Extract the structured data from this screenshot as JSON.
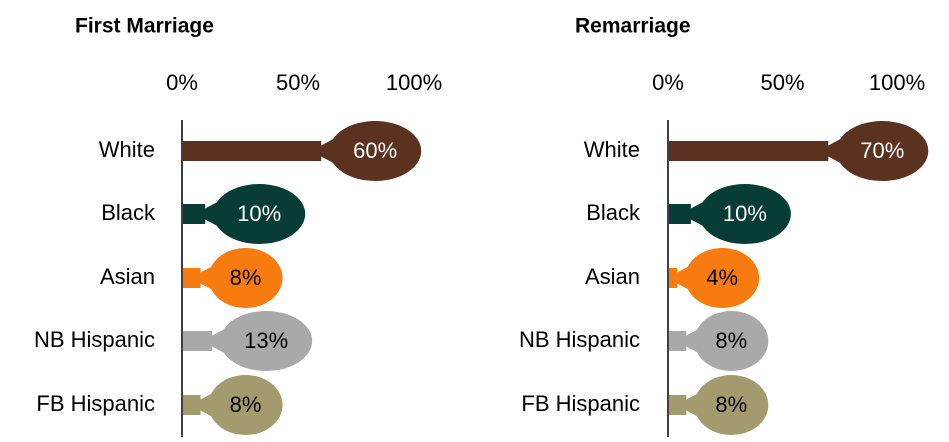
{
  "chart_data": [
    {
      "type": "bar",
      "orientation": "horizontal",
      "title": "First Marriage",
      "categories": [
        "White",
        "Black",
        "Asian",
        "NB Hispanic",
        "FB Hispanic"
      ],
      "values": [
        60,
        10,
        8,
        13,
        8
      ],
      "value_labels": [
        "60%",
        "10%",
        "8%",
        "13%",
        "8%"
      ],
      "colors": [
        "#5b3120",
        "#073d35",
        "#f77b0e",
        "#a9a9a9",
        "#a39a6e"
      ],
      "xlim": [
        0,
        100
      ],
      "xticks": [
        {
          "value": 0,
          "label": "0%"
        },
        {
          "value": 50,
          "label": "50%"
        },
        {
          "value": 100,
          "label": "100%"
        }
      ]
    },
    {
      "type": "bar",
      "orientation": "horizontal",
      "title": "Remarriage",
      "categories": [
        "White",
        "Black",
        "Asian",
        "NB Hispanic",
        "FB Hispanic"
      ],
      "values": [
        70,
        10,
        4,
        8,
        8
      ],
      "value_labels": [
        "70%",
        "10%",
        "4%",
        "8%",
        "8%"
      ],
      "colors": [
        "#5b3120",
        "#073d35",
        "#f77b0e",
        "#a9a9a9",
        "#a39a6e"
      ],
      "xlim": [
        0,
        100
      ],
      "xticks": [
        {
          "value": 0,
          "label": "0%"
        },
        {
          "value": 50,
          "label": "50%"
        },
        {
          "value": 100,
          "label": "100%"
        }
      ]
    }
  ]
}
